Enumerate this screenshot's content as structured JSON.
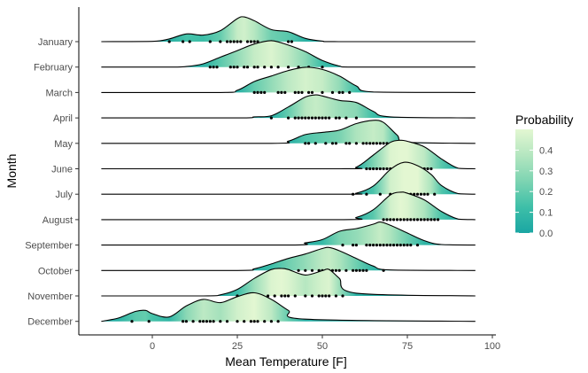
{
  "chart_data": {
    "type": "ridgeline",
    "title": "",
    "xlabel": "Mean Temperature [F]",
    "ylabel": "Month",
    "xlim": [
      -17,
      100
    ],
    "x_ticks": [
      0,
      25,
      50,
      75,
      100
    ],
    "grid": false,
    "legend": {
      "title": "Probability",
      "placement": "right",
      "ticks": [
        "0.0",
        "0.1",
        "0.2",
        "0.3",
        "0.4"
      ],
      "colormap": [
        "#1aa6a3",
        "#3ebfa8",
        "#7dd4b2",
        "#b4e6c0",
        "#e3f7d2"
      ]
    },
    "months": [
      {
        "name": "January",
        "points": [
          5,
          9,
          11,
          17,
          20,
          22,
          23,
          24,
          25,
          26,
          28,
          29,
          30,
          31,
          35,
          40,
          41
        ]
      },
      {
        "name": "February",
        "points": [
          17,
          18,
          19,
          23,
          24,
          25,
          27,
          28,
          30,
          31,
          33,
          35,
          37,
          40,
          43,
          46,
          50
        ]
      },
      {
        "name": "March",
        "points": [
          30,
          31,
          32,
          33,
          37,
          38,
          39,
          42,
          43,
          44,
          46,
          47,
          50,
          53,
          55,
          56,
          58
        ]
      },
      {
        "name": "April",
        "points": [
          35,
          40,
          42,
          43,
          44,
          45,
          46,
          47,
          48,
          49,
          50,
          51,
          52,
          54,
          55,
          57,
          60
        ]
      },
      {
        "name": "May",
        "points": [
          45,
          46,
          48,
          51,
          53,
          54,
          57,
          58,
          60,
          62,
          63,
          64,
          65,
          66,
          67,
          68,
          69
        ]
      },
      {
        "name": "June",
        "points": [
          63,
          64,
          65,
          66,
          67,
          68,
          69,
          70,
          71,
          72,
          73,
          74,
          75,
          76,
          77,
          78,
          80,
          81,
          82
        ]
      },
      {
        "name": "July",
        "points": [
          59,
          63,
          67,
          70,
          71,
          72,
          73,
          74,
          75,
          76,
          77,
          78,
          79,
          80,
          81,
          83
        ]
      },
      {
        "name": "August",
        "points": [
          68,
          69,
          70,
          71,
          72,
          73,
          74,
          75,
          76,
          77,
          78,
          79,
          80,
          81,
          82,
          83,
          84
        ]
      },
      {
        "name": "September",
        "points": [
          56,
          59,
          60,
          63,
          64,
          65,
          66,
          67,
          68,
          69,
          70,
          71,
          72,
          73,
          74,
          75,
          76,
          78
        ]
      },
      {
        "name": "October",
        "points": [
          43,
          45,
          47,
          49,
          50,
          51,
          52,
          53,
          54,
          55,
          57,
          59,
          60,
          61,
          62,
          63,
          68
        ]
      },
      {
        "name": "November",
        "points": [
          25,
          28,
          31,
          34,
          36,
          38,
          39,
          40,
          42,
          45,
          47,
          49,
          50,
          51,
          52,
          54,
          56
        ]
      },
      {
        "name": "December",
        "points": [
          -6,
          -1,
          9,
          10,
          12,
          14,
          15,
          16,
          17,
          18,
          20,
          22,
          25,
          27,
          29,
          30,
          31,
          33,
          35,
          37
        ]
      }
    ],
    "densities": [
      {
        "name": "January",
        "x": [
          -15,
          0,
          5,
          10,
          15,
          20,
          25,
          27,
          30,
          35,
          40,
          45,
          50,
          55,
          95
        ],
        "y": [
          0,
          0.005,
          0.05,
          0.14,
          0.12,
          0.2,
          0.42,
          0.45,
          0.38,
          0.22,
          0.18,
          0.06,
          0.01,
          0,
          0
        ]
      },
      {
        "name": "February",
        "x": [
          -15,
          5,
          10,
          15,
          20,
          25,
          30,
          35,
          40,
          45,
          50,
          55,
          60,
          95
        ],
        "y": [
          0,
          0,
          0.01,
          0.06,
          0.18,
          0.3,
          0.42,
          0.48,
          0.4,
          0.28,
          0.12,
          0.02,
          0,
          0
        ]
      },
      {
        "name": "March",
        "x": [
          -15,
          20,
          25,
          30,
          35,
          40,
          45,
          50,
          55,
          60,
          65,
          95
        ],
        "y": [
          0,
          0,
          0.04,
          0.2,
          0.3,
          0.4,
          0.46,
          0.42,
          0.3,
          0.12,
          0.01,
          0
        ]
      },
      {
        "name": "April",
        "x": [
          -15,
          25,
          30,
          35,
          40,
          45,
          48,
          50,
          55,
          60,
          65,
          70,
          95
        ],
        "y": [
          0,
          0,
          0.02,
          0.04,
          0.2,
          0.38,
          0.42,
          0.4,
          0.32,
          0.28,
          0.12,
          0.02,
          0
        ]
      },
      {
        "name": "May",
        "x": [
          -15,
          35,
          40,
          45,
          50,
          55,
          60,
          65,
          68,
          72,
          75,
          95
        ],
        "y": [
          0,
          0,
          0.04,
          0.16,
          0.2,
          0.24,
          0.36,
          0.42,
          0.38,
          0.15,
          0.02,
          0
        ]
      },
      {
        "name": "June",
        "x": [
          -15,
          55,
          60,
          65,
          70,
          73,
          75,
          80,
          85,
          90,
          95
        ],
        "y": [
          0,
          0,
          0.03,
          0.25,
          0.48,
          0.52,
          0.5,
          0.4,
          0.18,
          0.01,
          0
        ]
      },
      {
        "name": "July",
        "x": [
          -15,
          55,
          60,
          65,
          70,
          74,
          78,
          82,
          85,
          90,
          95
        ],
        "y": [
          0,
          0,
          0.02,
          0.15,
          0.45,
          0.58,
          0.52,
          0.36,
          0.16,
          0.01,
          0
        ]
      },
      {
        "name": "August",
        "x": [
          -15,
          55,
          60,
          65,
          70,
          73,
          75,
          80,
          85,
          90,
          95
        ],
        "y": [
          0,
          0,
          0.04,
          0.18,
          0.45,
          0.5,
          0.48,
          0.36,
          0.15,
          0.01,
          0
        ]
      },
      {
        "name": "September",
        "x": [
          -15,
          40,
          45,
          50,
          55,
          60,
          65,
          67,
          70,
          75,
          80,
          85,
          95
        ],
        "y": [
          0,
          0,
          0.04,
          0.1,
          0.25,
          0.3,
          0.38,
          0.42,
          0.36,
          0.22,
          0.08,
          0.01,
          0
        ]
      },
      {
        "name": "October",
        "x": [
          -15,
          25,
          30,
          35,
          40,
          45,
          50,
          52,
          55,
          60,
          65,
          70,
          95
        ],
        "y": [
          0,
          0,
          0.03,
          0.12,
          0.22,
          0.3,
          0.4,
          0.42,
          0.36,
          0.22,
          0.08,
          0.01,
          0
        ]
      },
      {
        "name": "November",
        "x": [
          -15,
          15,
          20,
          25,
          30,
          35,
          38,
          40,
          45,
          50,
          52,
          55,
          60,
          95
        ],
        "y": [
          0,
          0,
          0.02,
          0.12,
          0.32,
          0.48,
          0.5,
          0.48,
          0.38,
          0.46,
          0.48,
          0.32,
          0.05,
          0
        ]
      },
      {
        "name": "December",
        "x": [
          -15,
          -10,
          -5,
          -2,
          0,
          5,
          10,
          15,
          20,
          25,
          30,
          35,
          40,
          45,
          95
        ],
        "y": [
          0,
          0.06,
          0.18,
          0.2,
          0.14,
          0.08,
          0.28,
          0.4,
          0.34,
          0.45,
          0.52,
          0.4,
          0.2,
          0.04,
          0
        ]
      }
    ]
  }
}
